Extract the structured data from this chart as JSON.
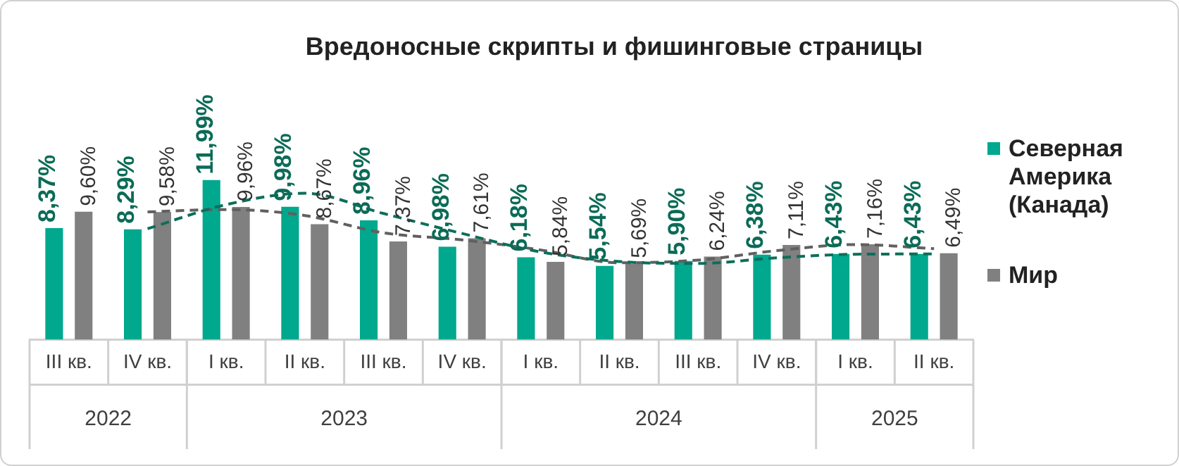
{
  "chart_data": {
    "type": "bar",
    "title": "Вредоносные скрипты и фишинговые страницы",
    "categories": [
      "III кв.",
      "IV кв.",
      "I кв.",
      "II кв.",
      "III кв.",
      "IV кв.",
      "I кв.",
      "II кв.",
      "III кв.",
      "IV кв.",
      "I кв.",
      "II кв."
    ],
    "series": [
      {
        "name": "Северная Америка (Канада)",
        "color": "#00a88e",
        "values": [
          8.37,
          8.29,
          11.99,
          9.98,
          8.96,
          6.98,
          6.18,
          5.54,
          5.9,
          6.38,
          6.43,
          6.43
        ],
        "value_labels": [
          "8,37%",
          "8,29%",
          "11,99%",
          "9,98%",
          "8,96%",
          "6,98%",
          "6,18%",
          "5,54%",
          "5,90%",
          "6,38%",
          "6,43%",
          "6,43%"
        ]
      },
      {
        "name": "Мир",
        "color": "#808080",
        "values": [
          9.6,
          9.58,
          9.96,
          8.67,
          7.37,
          7.61,
          5.84,
          5.69,
          6.24,
          7.11,
          7.16,
          6.49
        ],
        "value_labels": [
          "9,60%",
          "9,58%",
          "9,96%",
          "8,67%",
          "7,37%",
          "7,61%",
          "5,84%",
          "5,69%",
          "6,24%",
          "7,11%",
          "7,16%",
          "6,49%"
        ]
      },
      {
        "type": "line",
        "color": "#0e6e5a",
        "line_style": "dashed",
        "values": [
          null,
          8.33,
          10.14,
          10.99,
          9.47,
          7.97,
          6.58,
          5.86,
          5.72,
          6.14,
          6.41,
          6.43
        ]
      },
      {
        "type": "line",
        "color": "#606060",
        "line_style": "dashed",
        "values": [
          null,
          9.59,
          9.77,
          9.32,
          8.02,
          7.49,
          6.73,
          5.77,
          5.97,
          6.68,
          7.14,
          6.83
        ]
      }
    ],
    "annotations": [
      "2022",
      "2023",
      "2024",
      "2025"
    ],
    "legend": "right",
    "grid": false
  }
}
